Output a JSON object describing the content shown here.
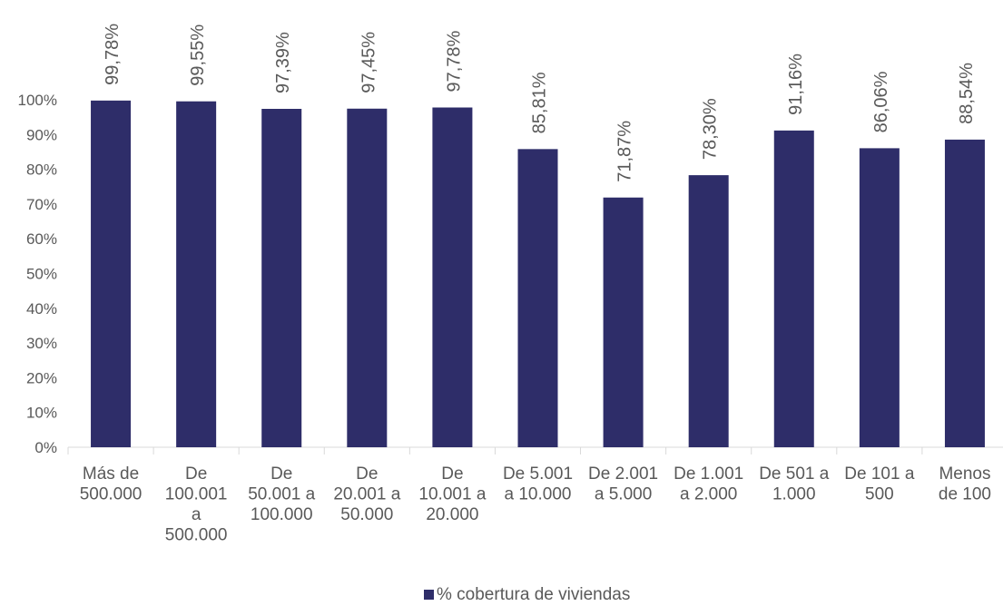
{
  "colors": {
    "bar": "#2e2d69",
    "text": "#595959",
    "axis": "#d9d9d9"
  },
  "chart_data": {
    "type": "bar",
    "categories": [
      "Más de 500.000",
      "De 100.001 a 500.000",
      "De 50.001 a 100.000",
      "De 20.001 a 50.000",
      "De 10.001 a 20.000",
      "De 5.001 a 10.000",
      "De 2.001 a 5.000",
      "De 1.001 a 2.000",
      "De 501 a 1.000",
      "De 101 a 500",
      "Menos de 100"
    ],
    "category_lines": [
      [
        "Más de",
        "500.000"
      ],
      [
        "De",
        "100.001",
        "a",
        "500.000"
      ],
      [
        "De",
        "50.001 a",
        "100.000"
      ],
      [
        "De",
        "20.001 a",
        "50.000"
      ],
      [
        "De",
        "10.001 a",
        "20.000"
      ],
      [
        "De 5.001",
        "a 10.000"
      ],
      [
        "De 2.001",
        "a 5.000"
      ],
      [
        "De 1.001",
        "a 2.000"
      ],
      [
        "De 501 a",
        "1.000"
      ],
      [
        "De 101 a",
        "500"
      ],
      [
        "Menos",
        "de 100"
      ]
    ],
    "series": [
      {
        "name": "% cobertura de viviendas",
        "values": [
          99.78,
          99.55,
          97.39,
          97.45,
          97.78,
          85.81,
          71.87,
          78.3,
          91.16,
          86.06,
          88.54
        ],
        "labels": [
          "99,78%",
          "99,55%",
          "97,39%",
          "97,45%",
          "97,78%",
          "85,81%",
          "71,87%",
          "78,30%",
          "91,16%",
          "86,06%",
          "88,54%"
        ]
      }
    ],
    "yticks": [
      "0%",
      "10%",
      "20%",
      "30%",
      "40%",
      "50%",
      "60%",
      "70%",
      "80%",
      "90%",
      "100%"
    ],
    "ylim": [
      0,
      100
    ],
    "title": "",
    "xlabel": "",
    "ylabel": "",
    "grid": false,
    "legend_position": "bottom"
  }
}
